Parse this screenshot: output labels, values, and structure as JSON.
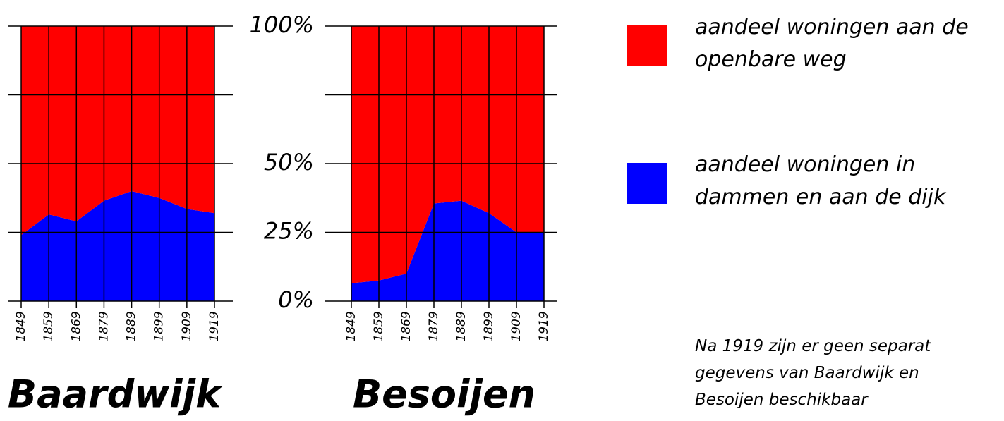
{
  "chart_data": [
    {
      "type": "area",
      "title": "Baardwijk",
      "categories": [
        "1849",
        "1859",
        "1869",
        "1879",
        "1889",
        "1899",
        "1909",
        "1919"
      ],
      "series": [
        {
          "name": "aandeel woningen in dammen en aan de dijk",
          "color": "#0000ff",
          "values": [
            24,
            31.5,
            29,
            36.5,
            40,
            37.5,
            33.5,
            32
          ]
        },
        {
          "name": "aandeel woningen aan de openbare weg",
          "color": "#ff0000",
          "values": [
            76,
            68.5,
            71,
            63.5,
            60,
            62.5,
            66.5,
            68
          ]
        }
      ],
      "ylim": [
        0,
        100
      ],
      "yticks": [
        {
          "value": 0,
          "label": "0%"
        },
        {
          "value": 25,
          "label": "25%"
        },
        {
          "value": 50,
          "label": "50%"
        },
        {
          "value": 100,
          "label": "100%"
        }
      ],
      "grid_lines": [
        0,
        25,
        50,
        75,
        100
      ]
    },
    {
      "type": "area",
      "title": "Besoijen",
      "categories": [
        "1849",
        "1859",
        "1869",
        "1879",
        "1889",
        "1899",
        "1909",
        "1919"
      ],
      "series": [
        {
          "color": "#0000ff",
          "values": [
            6.5,
            7.5,
            10,
            35.5,
            36.5,
            32,
            25,
            25
          ]
        },
        {
          "color": "#ff0000",
          "values": [
            93.5,
            92.5,
            90,
            64.5,
            63.5,
            68,
            75,
            75
          ]
        }
      ],
      "ylim": [
        0,
        100
      ],
      "grid_lines": [
        0,
        25,
        50,
        75,
        100
      ]
    }
  ],
  "note_lines": [
    "Na 1919 zijn er geen separat",
    "gegevens van Baardwijk en",
    "Besoijen beschikbaar"
  ]
}
